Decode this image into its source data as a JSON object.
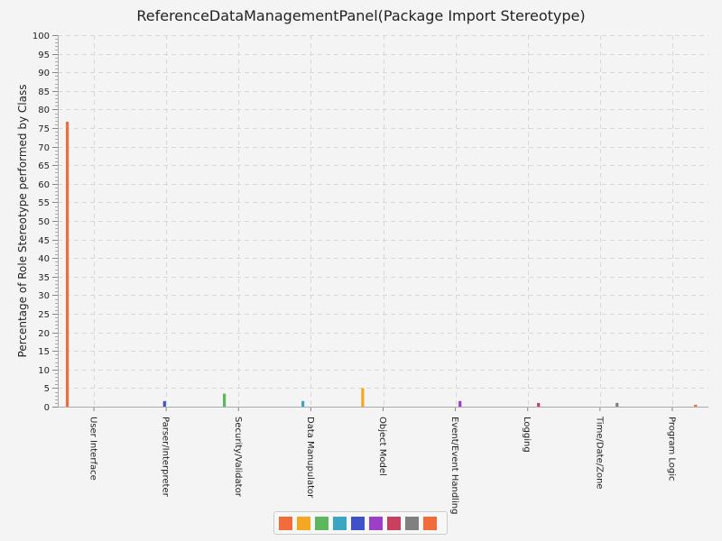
{
  "chart_data": {
    "type": "bar",
    "title": "ReferenceDataManagementPanel(Package Import Stereotype)",
    "xlabel": "",
    "ylabel": "Percentage of Role Stereotype performed by Class",
    "ylim": [
      0,
      100
    ],
    "yticks": [
      0,
      5,
      10,
      15,
      20,
      25,
      30,
      35,
      40,
      45,
      50,
      55,
      60,
      65,
      70,
      75,
      80,
      85,
      90,
      95,
      100
    ],
    "grid": true,
    "legend_position": "bottom",
    "categories": [
      "User Interface",
      "Parser/Interpreter",
      "Security/Validator",
      "Data Manupulator",
      "Object Model",
      "Event/Event Handling",
      "Logging",
      "Time/Date/Zone",
      "Program Logic"
    ],
    "series": [
      {
        "color": "#f26b3a",
        "values": [
          76.7,
          0,
          0,
          0,
          0,
          0,
          0,
          0,
          0
        ]
      },
      {
        "color": "#f5a623",
        "values": [
          0,
          0,
          0,
          0,
          5,
          0,
          0,
          0,
          0
        ]
      },
      {
        "color": "#5cb85c",
        "values": [
          0,
          0,
          3.5,
          0,
          0,
          0,
          0,
          0,
          0
        ]
      },
      {
        "color": "#3aa6c4",
        "values": [
          0,
          0,
          0,
          1.5,
          0,
          0,
          0,
          0,
          0
        ]
      },
      {
        "color": "#3f51c9",
        "values": [
          0,
          1.5,
          0,
          0,
          0,
          0,
          0,
          0,
          0
        ]
      },
      {
        "color": "#9b3fc9",
        "values": [
          0,
          0,
          0,
          0,
          0,
          1.5,
          0,
          0,
          0
        ]
      },
      {
        "color": "#c9405f",
        "values": [
          0,
          0,
          0,
          0,
          0,
          0,
          1,
          0,
          0
        ]
      },
      {
        "color": "#808080",
        "values": [
          0,
          0,
          0,
          0,
          0,
          0,
          0,
          1,
          0
        ]
      },
      {
        "color": "#f26b3a",
        "values": [
          0,
          0,
          0,
          0,
          0,
          0,
          0,
          0,
          0.5
        ]
      }
    ]
  }
}
